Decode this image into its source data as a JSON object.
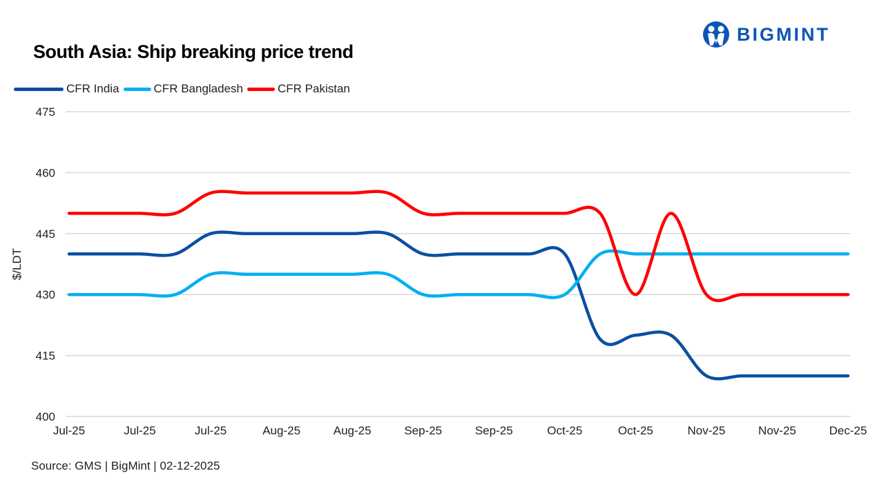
{
  "brand": {
    "logo_text": "BIGMINT",
    "color": "#0b56b5"
  },
  "source": "Source: GMS | BigMint  | 02-12-2025",
  "chart_data": {
    "type": "line",
    "title": "South Asia: Ship breaking  price trend",
    "ylabel": "$/LDT",
    "xlabel": "",
    "ylim": [
      400,
      475
    ],
    "yticks": [
      400,
      415,
      430,
      445,
      460,
      475
    ],
    "grid": true,
    "legend_position": "top-left",
    "smooth": true,
    "x_tick_labels": [
      "Jul-25",
      "Jul-25",
      "Jul-25",
      "Aug-25",
      "Aug-25",
      "Sep-25",
      "Sep-25",
      "Oct-25",
      "Oct-25",
      "Nov-25",
      "Nov-25",
      "Dec-25"
    ],
    "series": [
      {
        "name": "CFR India",
        "color": "#0a4fa3",
        "values": [
          440,
          440,
          440,
          440,
          445,
          445,
          445,
          445,
          445,
          445,
          440,
          440,
          440,
          440,
          440,
          419,
          420,
          420,
          410,
          410,
          410,
          410,
          410
        ]
      },
      {
        "name": "CFR Bangladesh",
        "color": "#00b0f0",
        "values": [
          430,
          430,
          430,
          430,
          435,
          435,
          435,
          435,
          435,
          435,
          430,
          430,
          430,
          430,
          430,
          440,
          440,
          440,
          440,
          440,
          440,
          440,
          440
        ]
      },
      {
        "name": "CFR Pakistan",
        "color": "#ff0000",
        "values": [
          450,
          450,
          450,
          450,
          455,
          455,
          455,
          455,
          455,
          455,
          450,
          450,
          450,
          450,
          450,
          450,
          430,
          450,
          430,
          430,
          430,
          430,
          430
        ]
      }
    ]
  }
}
